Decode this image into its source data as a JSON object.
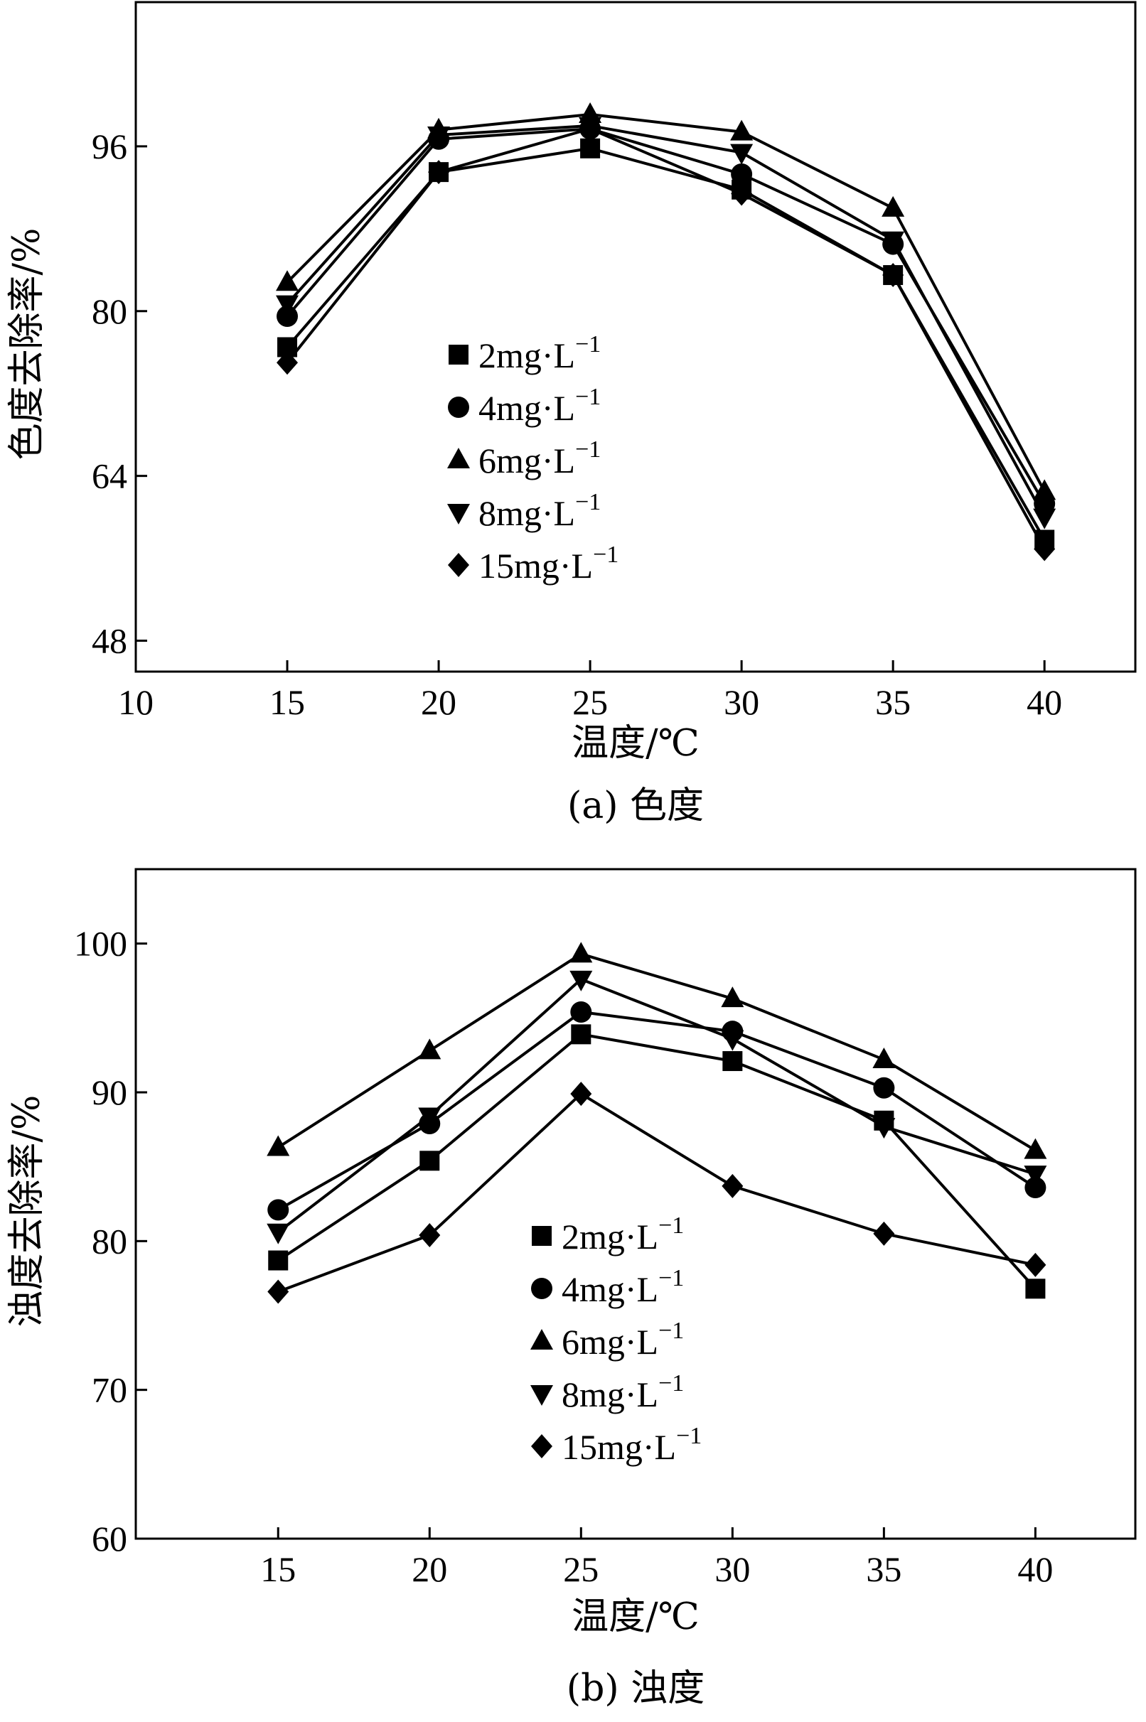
{
  "chart_data": [
    {
      "id": "a",
      "type": "line",
      "caption": "(a) 色度",
      "xlabel": "温度/℃",
      "ylabel": "色度去除率/%",
      "xlim": [
        10,
        43
      ],
      "ylim": [
        45,
        110
      ],
      "xticks": [
        "10",
        "15",
        "20",
        "25",
        "30",
        "35",
        "40"
      ],
      "yticks": [
        "48",
        "64",
        "80",
        "96"
      ],
      "x": [
        15,
        20,
        25,
        30,
        35,
        40
      ],
      "legend_position": "center-left",
      "series": [
        {
          "name": "2mg·L",
          "sup": "−1",
          "marker": "square",
          "values": [
            76.5,
            93.5,
            95.8,
            91.8,
            83.5,
            57.8
          ]
        },
        {
          "name": "4mg·L",
          "sup": "−1",
          "marker": "circle",
          "values": [
            79.5,
            96.7,
            97.7,
            93.3,
            86.5,
            61.3
          ]
        },
        {
          "name": "6mg·L",
          "sup": "−1",
          "marker": "triangle-up",
          "values": [
            82.8,
            97.6,
            99.1,
            97.4,
            90.0,
            62.5
          ]
        },
        {
          "name": "8mg·L",
          "sup": "−1",
          "marker": "triangle-down",
          "values": [
            80.7,
            97.1,
            98.0,
            95.4,
            86.9,
            60.0
          ]
        },
        {
          "name": "15mg·L",
          "sup": "−1",
          "marker": "diamond",
          "values": [
            75.0,
            93.5,
            97.7,
            91.4,
            83.5,
            56.9
          ]
        }
      ]
    },
    {
      "id": "b",
      "type": "line",
      "caption": "(b) 浊度",
      "xlabel": "温度/℃",
      "ylabel": "浊度去除率/%",
      "xlim": [
        10.3,
        43.3
      ],
      "ylim": [
        60,
        105
      ],
      "xticks": [
        "15",
        "20",
        "25",
        "30",
        "35",
        "40"
      ],
      "yticks": [
        "60",
        "70",
        "80",
        "90",
        "100"
      ],
      "x": [
        15,
        20,
        25,
        30,
        35,
        40
      ],
      "legend_position": "center",
      "series": [
        {
          "name": "2mg·L",
          "sup": "−1",
          "marker": "square",
          "values": [
            78.7,
            85.4,
            93.9,
            92.1,
            88.1,
            76.8
          ]
        },
        {
          "name": "4mg·L",
          "sup": "−1",
          "marker": "circle",
          "values": [
            82.1,
            87.9,
            95.4,
            94.1,
            90.3,
            83.6
          ]
        },
        {
          "name": "6mg·L",
          "sup": "−1",
          "marker": "triangle-up",
          "values": [
            86.3,
            92.8,
            99.3,
            96.3,
            92.2,
            86.1
          ]
        },
        {
          "name": "8mg·L",
          "sup": "−1",
          "marker": "triangle-down",
          "values": [
            80.6,
            88.4,
            97.6,
            93.6,
            87.7,
            84.5
          ]
        },
        {
          "name": "15mg·L",
          "sup": "−1",
          "marker": "diamond",
          "values": [
            76.6,
            80.4,
            89.9,
            83.7,
            80.5,
            78.4
          ]
        }
      ]
    }
  ]
}
